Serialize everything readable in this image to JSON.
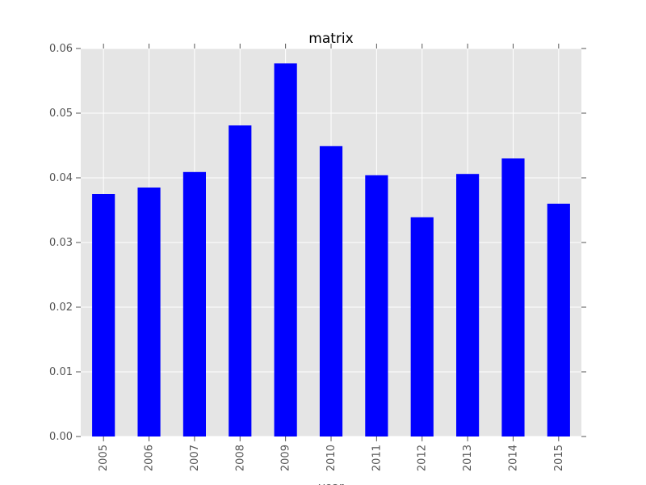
{
  "chart_data": {
    "type": "bar",
    "title": "matrix",
    "xlabel": "year",
    "ylabel": "",
    "categories": [
      "2005",
      "2006",
      "2007",
      "2008",
      "2009",
      "2010",
      "2011",
      "2012",
      "2013",
      "2014",
      "2015"
    ],
    "values": [
      0.0375,
      0.0385,
      0.0409,
      0.0481,
      0.0577,
      0.0449,
      0.0404,
      0.0339,
      0.0406,
      0.043,
      0.036
    ],
    "ylim": [
      0,
      0.06
    ],
    "yticks": [
      "0.00",
      "0.01",
      "0.02",
      "0.03",
      "0.04",
      "0.05",
      "0.06"
    ],
    "grid": true,
    "legend": "none",
    "colors": {
      "bar": "#0000ff",
      "plot_background": "#e5e5e5",
      "grid": "#ffffff",
      "tick_mark": "#555555"
    }
  }
}
